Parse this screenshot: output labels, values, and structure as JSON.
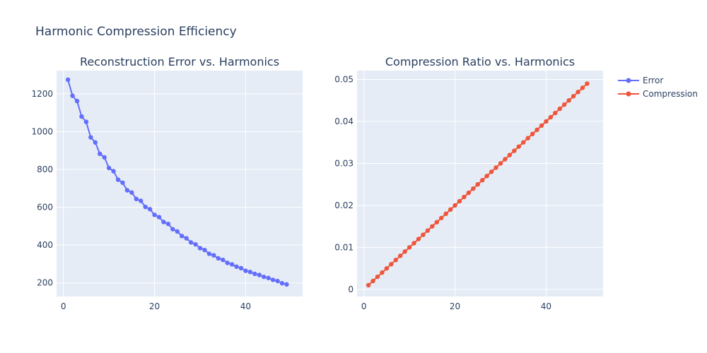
{
  "title": "Harmonic Compression Efficiency",
  "colors": {
    "plot_bg": "#e5ecf6",
    "grid": "#ffffff",
    "text": "#2a3f5f",
    "error": "#636efa",
    "compression": "#ef553b"
  },
  "legend": {
    "placement": "top-right",
    "items": [
      {
        "label": "Error",
        "color": "#636efa"
      },
      {
        "label": "Compression",
        "color": "#ef553b"
      }
    ]
  },
  "chart_data": [
    {
      "type": "line",
      "title": "Reconstruction Error vs. Harmonics",
      "xlabel": "",
      "ylabel": "",
      "xlim": [
        -1.5,
        52.5
      ],
      "ylim": [
        128,
        1323
      ],
      "xticks": [
        0,
        20,
        40
      ],
      "yticks": [
        200,
        400,
        600,
        800,
        1000,
        1200
      ],
      "grid": true,
      "series": [
        {
          "name": "Error",
          "color": "#636efa",
          "x": [
            1,
            2,
            3,
            4,
            5,
            6,
            7,
            8,
            9,
            10,
            11,
            12,
            13,
            14,
            15,
            16,
            17,
            18,
            19,
            20,
            21,
            22,
            23,
            24,
            25,
            26,
            27,
            28,
            29,
            30,
            31,
            32,
            33,
            34,
            35,
            36,
            37,
            38,
            39,
            40,
            41,
            42,
            43,
            44,
            45,
            46,
            47,
            48,
            49
          ],
          "y": [
            1275,
            1190,
            1162,
            1080,
            1052,
            970,
            943,
            883,
            864,
            808,
            791,
            746,
            730,
            690,
            678,
            644,
            634,
            602,
            590,
            560,
            548,
            522,
            512,
            484,
            472,
            448,
            436,
            414,
            404,
            384,
            374,
            354,
            346,
            330,
            322,
            306,
            298,
            286,
            278,
            264,
            258,
            248,
            242,
            232,
            226,
            216,
            210,
            198,
            192
          ]
        }
      ]
    },
    {
      "type": "line",
      "title": "Compression Ratio vs. Harmonics",
      "xlabel": "",
      "ylabel": "",
      "xlim": [
        -1.5,
        52.5
      ],
      "ylim": [
        -0.0017,
        0.0521
      ],
      "xticks": [
        0,
        20,
        40
      ],
      "yticks": [
        0,
        0.01,
        0.02,
        0.03,
        0.04,
        0.05
      ],
      "ytick_labels": [
        "0",
        "0.01",
        "0.02",
        "0.03",
        "0.04",
        "0.05"
      ],
      "grid": true,
      "series": [
        {
          "name": "Compression",
          "color": "#ef553b",
          "x": [
            1,
            2,
            3,
            4,
            5,
            6,
            7,
            8,
            9,
            10,
            11,
            12,
            13,
            14,
            15,
            16,
            17,
            18,
            19,
            20,
            21,
            22,
            23,
            24,
            25,
            26,
            27,
            28,
            29,
            30,
            31,
            32,
            33,
            34,
            35,
            36,
            37,
            38,
            39,
            40,
            41,
            42,
            43,
            44,
            45,
            46,
            47,
            48,
            49
          ],
          "y": [
            0.001,
            0.002,
            0.003,
            0.004,
            0.005,
            0.006,
            0.007,
            0.008,
            0.009,
            0.01,
            0.011,
            0.012,
            0.013,
            0.014,
            0.015,
            0.016,
            0.017,
            0.018,
            0.019,
            0.02,
            0.021,
            0.022,
            0.023,
            0.024,
            0.025,
            0.026,
            0.027,
            0.028,
            0.029,
            0.03,
            0.031,
            0.032,
            0.033,
            0.034,
            0.035,
            0.036,
            0.037,
            0.038,
            0.039,
            0.04,
            0.041,
            0.042,
            0.043,
            0.044,
            0.045,
            0.046,
            0.047,
            0.048,
            0.049
          ]
        }
      ]
    }
  ]
}
